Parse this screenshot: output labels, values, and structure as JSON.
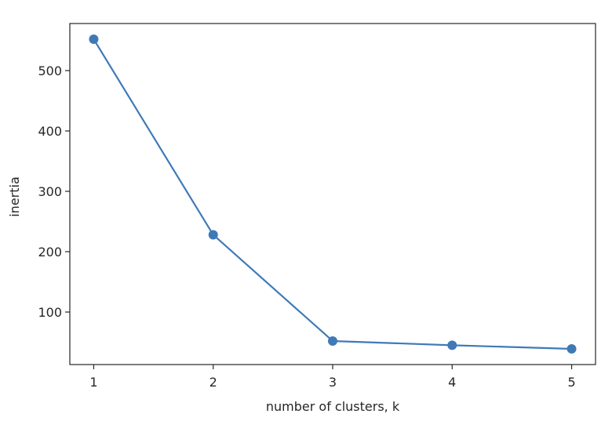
{
  "chart_data": {
    "type": "line",
    "title": "",
    "xlabel": "number of clusters, k",
    "ylabel": "inertia",
    "x": [
      1,
      2,
      3,
      4,
      5
    ],
    "series": [
      {
        "values": [
          552,
          228,
          52,
          45,
          39
        ],
        "color": "#3f7ab7",
        "marker": "circle"
      }
    ],
    "xlim": [
      0.8,
      5.2
    ],
    "ylim": [
      13,
      578
    ],
    "xticks": [
      1,
      2,
      3,
      4,
      5
    ],
    "yticks": [
      100,
      200,
      300,
      400,
      500
    ],
    "grid": false,
    "legend": "none"
  }
}
